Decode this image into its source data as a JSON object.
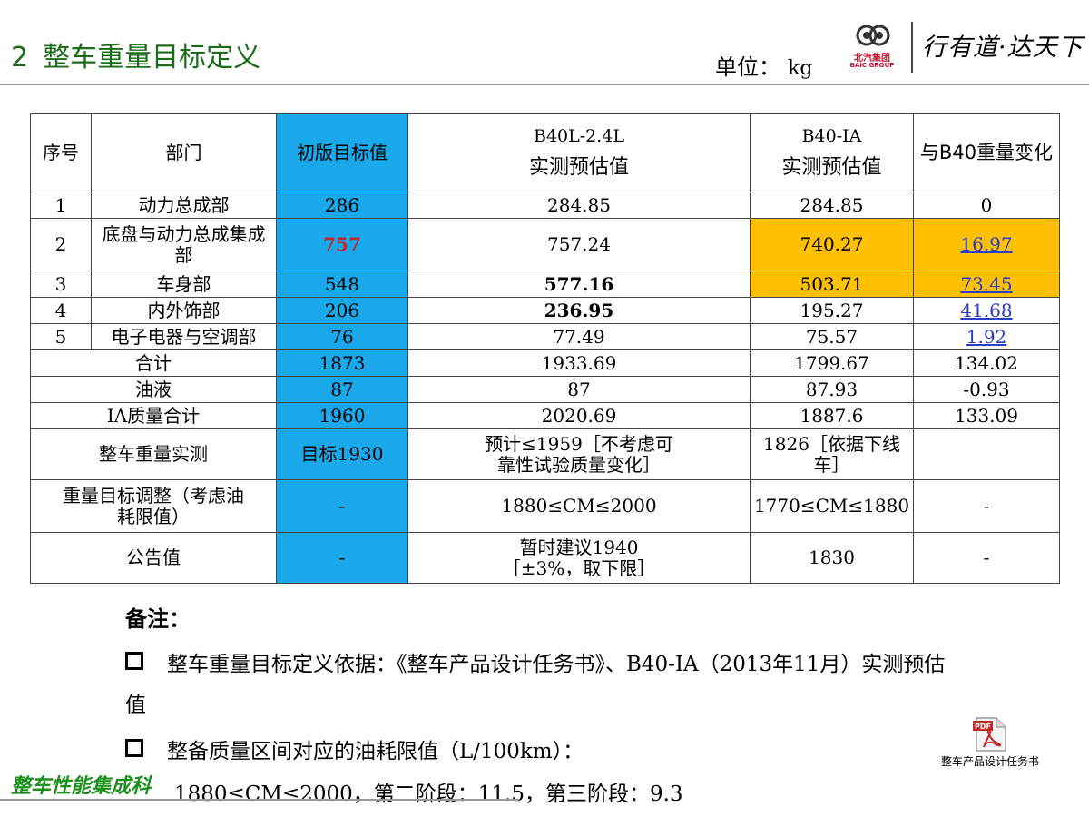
{
  "header": {
    "number": "2",
    "title": "整车重量目标定义",
    "unit_label": "单位：",
    "unit_value": "kg",
    "logo_cn": "北汽集团",
    "logo_en": "BAIC GROUP",
    "slogan": "行有道·达天下"
  },
  "table": {
    "headers": {
      "seq": "序号",
      "dept": "部门",
      "initial": "初版目标值",
      "b40l_line1": "B40L-2.4L",
      "b40l_line2": "实测预估值",
      "b40ia_line1": "B40-IA",
      "b40ia_line2": "实测预估值",
      "change": "与B40重量变化"
    },
    "rows": [
      {
        "seq": "1",
        "dept": "动力总成部",
        "initial": "286",
        "b40l": "284.85",
        "b40ia": "284.85",
        "change": "0"
      },
      {
        "seq": "2",
        "dept": "底盘与动力总成集成部",
        "initial": "757",
        "b40l": "757.24",
        "b40ia": "740.27",
        "change": "16.97"
      },
      {
        "seq": "3",
        "dept": "车身部",
        "initial": "548",
        "b40l": "577.16",
        "b40ia": "503.71",
        "change": "73.45"
      },
      {
        "seq": "4",
        "dept": "内外饰部",
        "initial": "206",
        "b40l": "236.95",
        "b40ia": "195.27",
        "change": "41.68"
      },
      {
        "seq": "5",
        "dept": "电子电器与空调部",
        "initial": "76",
        "b40l": "77.49",
        "b40ia": "75.57",
        "change": "1.92"
      }
    ],
    "total": {
      "label": "合计",
      "initial": "1873",
      "b40l": "1933.69",
      "b40ia": "1799.67",
      "change": "134.02"
    },
    "oil": {
      "label": "油液",
      "initial": "87",
      "b40l": "87",
      "b40ia": "87.93",
      "change": "-0.93"
    },
    "ia_total": {
      "label": "IA质量合计",
      "initial": "1960",
      "b40l": "2020.69",
      "b40ia": "1887.6",
      "change": "133.09"
    },
    "measured": {
      "label": "整车重量实测",
      "initial": "目标1930",
      "b40l": "预计≤1959［不考虑可靠性试验质量变化］",
      "b40ia": "1826［依据下线车］",
      "change": ""
    },
    "adjust": {
      "label": "重量目标调整（考虑油耗限值）",
      "initial": "-",
      "b40l": "1880≤CM≤2000",
      "b40ia": "1770≤CM≤1880",
      "change": "-"
    },
    "notice": {
      "label": "公告值",
      "initial": "-",
      "b40l_line1": "暂时建议1940",
      "b40l_line2": "［±3%，取下限］",
      "b40ia": "1830",
      "change": "-"
    }
  },
  "notes": {
    "title": "备注：",
    "item1_line1": "整车重量目标定义依据：《整车产品设计任务书》、B40-IA（2013年11月）实测预估",
    "item1_line2": "值",
    "item2": "整备质量区间对应的油耗限值（L/100km）：",
    "item3": "1880≤CM≤2000，第二阶段：11.5，第三阶段：9.3"
  },
  "footer": {
    "brand": "整车性能集成科",
    "attachment_label": "整车产品设计任务书",
    "pdf_badge": "PDF"
  },
  "colors": {
    "blue_column": "#19a9ea",
    "orange_highlight": "#ffc000",
    "title_green": "#1a6e1a",
    "link_blue": "#2b3cc9",
    "red_value": "#c0282a"
  }
}
